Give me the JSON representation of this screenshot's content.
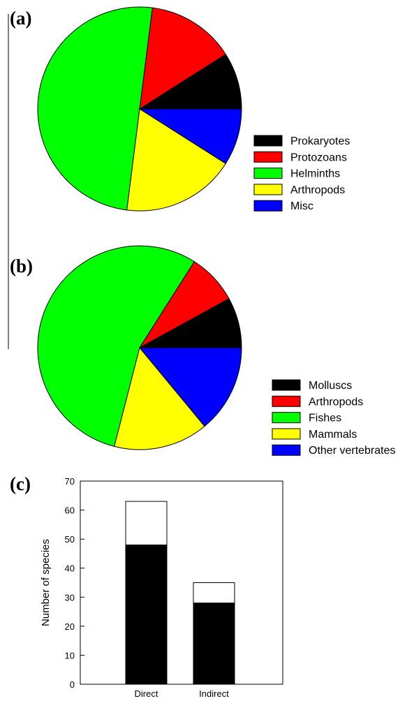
{
  "chart_data": [
    {
      "panel": "(a)",
      "type": "pie",
      "slices": [
        {
          "label": "Prokaryotes",
          "value": 9,
          "color": "#000000"
        },
        {
          "label": "Protozoans",
          "value": 14,
          "color": "#ff0000"
        },
        {
          "label": "Helminths",
          "value": 50,
          "color": "#00ff00"
        },
        {
          "label": "Arthropods",
          "value": 18,
          "color": "#ffff00"
        },
        {
          "label": "Misc",
          "value": 9,
          "color": "#0000ff"
        }
      ],
      "legend_position": "right"
    },
    {
      "panel": "(b)",
      "type": "pie",
      "slices": [
        {
          "label": "Molluscs",
          "value": 8,
          "color": "#000000"
        },
        {
          "label": "Arthropods",
          "value": 8,
          "color": "#ff0000"
        },
        {
          "label": "Fishes",
          "value": 55,
          "color": "#00ff00"
        },
        {
          "label": "Mammals",
          "value": 15,
          "color": "#ffff00"
        },
        {
          "label": "Other vertebrates",
          "value": 14,
          "color": "#0000ff"
        }
      ],
      "legend_position": "bottom-right"
    },
    {
      "panel": "(c)",
      "type": "bar",
      "stacked": true,
      "categories": [
        "Direct",
        "Indirect"
      ],
      "series": [
        {
          "values": [
            48,
            28
          ],
          "color": "#000000"
        },
        {
          "values": [
            15,
            7
          ],
          "color": "#ffffff"
        }
      ],
      "ylabel": "Number of species",
      "ylim": [
        0,
        70
      ],
      "yticks": [
        0,
        10,
        20,
        30,
        40,
        50,
        60,
        70
      ]
    }
  ]
}
